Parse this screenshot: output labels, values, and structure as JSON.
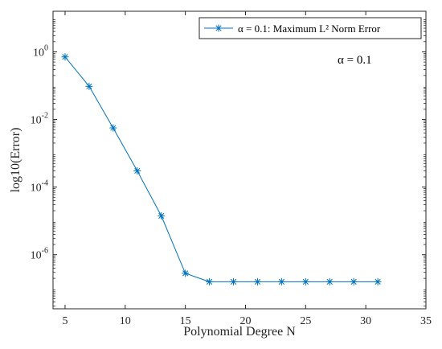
{
  "chart_data": {
    "type": "line",
    "xlabel": "Polynomial Degree N",
    "ylabel": "log10(Error)",
    "xlim": [
      4,
      35
    ],
    "ylim_log10": [
      -7.6,
      1.2
    ],
    "y_scale": "log",
    "grid": false,
    "legend_placement": "top-right",
    "x_ticks": [
      5,
      10,
      15,
      20,
      25,
      30,
      35
    ],
    "y_tick_exponents": [
      0,
      -2,
      -4,
      -6
    ],
    "annotation": "α = 0.1",
    "series": [
      {
        "name": "α = 0.1: Maximum L² Norm Error",
        "marker": "asterisk",
        "color": "#0072BD",
        "x": [
          5,
          7,
          9,
          11,
          13,
          15,
          17,
          19,
          21,
          23,
          25,
          27,
          29,
          31
        ],
        "log10_y": [
          -0.15,
          -1.02,
          -2.25,
          -3.52,
          -4.85,
          -6.55,
          -6.8,
          -6.8,
          -6.8,
          -6.8,
          -6.8,
          -6.8,
          -6.8,
          -6.8
        ]
      }
    ]
  }
}
